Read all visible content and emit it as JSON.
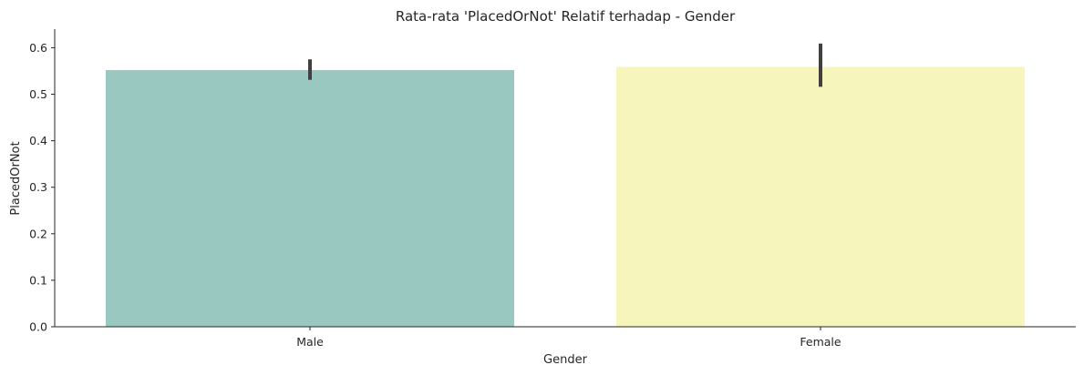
{
  "chart_data": {
    "type": "bar",
    "title": "Rata-rata 'PlacedOrNot' Relatif terhadap - Gender",
    "xlabel": "Gender",
    "ylabel": "PlacedOrNot",
    "categories": [
      "Male",
      "Female"
    ],
    "values": [
      0.552,
      0.559
    ],
    "error_bars": [
      {
        "low": 0.531,
        "high": 0.575
      },
      {
        "low": 0.516,
        "high": 0.609
      }
    ],
    "colors": [
      "#99c8c1",
      "#f5f5bc"
    ],
    "errorbar_color": "#404040",
    "ylim": [
      0,
      0.64
    ],
    "yticks": [
      0.0,
      0.1,
      0.2,
      0.3,
      0.4,
      0.5,
      0.6
    ],
    "ytick_labels": [
      "0.0",
      "0.1",
      "0.2",
      "0.3",
      "0.4",
      "0.5",
      "0.6"
    ],
    "grid": false,
    "legend": "none"
  }
}
